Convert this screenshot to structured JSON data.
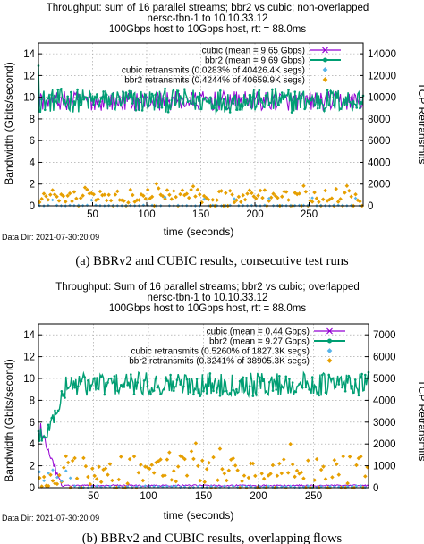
{
  "colors": {
    "cubic": "#9400d3",
    "bbr2": "#009e73",
    "cubic_retransmits": "#56b4e9",
    "bbr2_retransmits": "#e69f00"
  },
  "chart_data": [
    {
      "type": "line",
      "title_lines": [
        "Throughput: sum of 16 parallel streams; bbr2 vs cubic; non-overlapped",
        "nersc-tbn-1 to 10.10.33.12",
        "100Gbps host to 10Gbps host, rtt = 88.0ms"
      ],
      "xlabel": "time (seconds)",
      "ylabel": "Bandwidth (Gbits/second)",
      "y2label": "TCP Retransmits",
      "xlim": [
        0,
        300
      ],
      "ylim": [
        0,
        15
      ],
      "y2lim": [
        0,
        15000
      ],
      "xticks": [
        50,
        100,
        150,
        200,
        250
      ],
      "yticks": [
        0,
        2,
        4,
        6,
        8,
        10,
        12,
        14
      ],
      "y2ticks": [
        0,
        2000,
        4000,
        6000,
        8000,
        10000,
        12000,
        14000
      ],
      "legend_position": "top-right",
      "series": [
        {
          "key": "cubic",
          "label": "cubic (mean = 9.65 Gbps)",
          "kind": "line",
          "mean": 9.65,
          "axis": "y"
        },
        {
          "key": "bbr2",
          "label": "bbr2 (mean = 9.69 Gbps)",
          "kind": "line",
          "mean": 9.69,
          "axis": "y"
        },
        {
          "key": "cubic_retransmits",
          "label": "cubic retransmits (0.0283% of 40426.4K segs)",
          "kind": "points",
          "axis": "y2"
        },
        {
          "key": "bbr2_retransmits",
          "label": "bbr2 retransmits (0.4244% of 40659.9K segs)",
          "kind": "points",
          "axis": "y2"
        }
      ],
      "footer": "Data Dir: 2021-07-30:20:09"
    },
    {
      "type": "line",
      "title_lines": [
        "Throughput: Sum of 16 parallel streams; bbr2 vs cubic; overlapped",
        "nersc-tbn-1 to 10.10.33.12",
        "100Gbps host to 10Gbps host, rtt = 88.0ms"
      ],
      "xlabel": "time (seconds)",
      "ylabel": "Bandwidth (Gbits/second)",
      "y2label": "TCP Retransmits",
      "xlim": [
        0,
        300
      ],
      "ylim": [
        0,
        15
      ],
      "y2lim": [
        0,
        7500
      ],
      "xticks": [
        50,
        100,
        150,
        200,
        250
      ],
      "yticks": [
        0,
        2,
        4,
        6,
        8,
        10,
        12,
        14
      ],
      "y2ticks": [
        0,
        1000,
        2000,
        3000,
        4000,
        5000,
        6000,
        7000
      ],
      "legend_position": "top-right",
      "series": [
        {
          "key": "cubic",
          "label": "cubic (mean = 0.44 Gbps)",
          "kind": "line",
          "mean": 0.44,
          "axis": "y"
        },
        {
          "key": "bbr2",
          "label": "bbr2 (mean = 9.27 Gbps)",
          "kind": "line",
          "mean": 9.27,
          "axis": "y"
        },
        {
          "key": "cubic_retransmits",
          "label": "cubic retransmits (0.5260% of 1827.3K segs)",
          "kind": "points",
          "axis": "y2"
        },
        {
          "key": "bbr2_retransmits",
          "label": "bbr2 retransmits (0.3241% of 38905.3K segs)",
          "kind": "points",
          "axis": "y2"
        }
      ],
      "footer": "Data Dir: 2021-07-30:20:09"
    }
  ],
  "captions": [
    "(a) BBRv2 and CUBIC results, consecutive test runs",
    "(b) BBRv2 and CUBIC results, overlapping flows"
  ]
}
